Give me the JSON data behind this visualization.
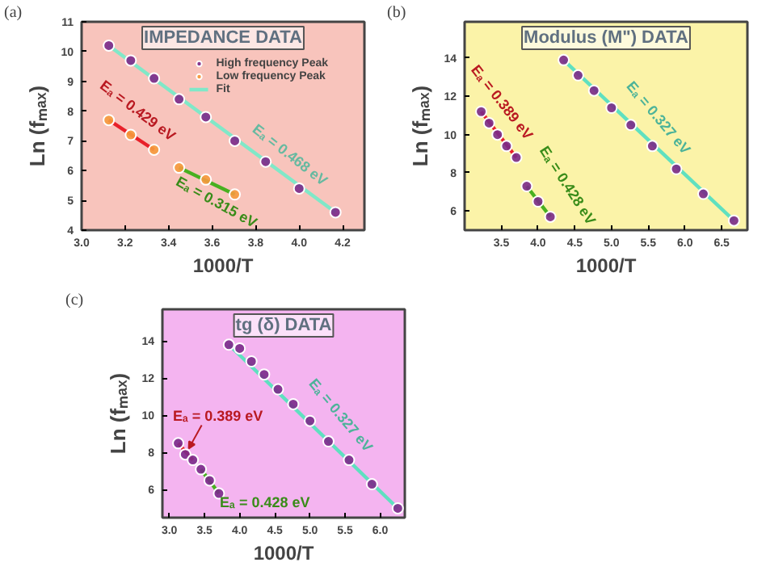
{
  "chart_data": [
    {
      "type": "scatter",
      "title": "IMPEDANCE DATA",
      "xlabel": "1000/T",
      "ylabel": "Ln (fₘₐₓ)",
      "xlim": [
        3.0,
        4.3
      ],
      "ylim": [
        4,
        11
      ],
      "xticks": [
        {
          "value": 3.0,
          "label": "3.0"
        },
        3.2,
        3.4,
        3.6,
        3.8,
        {
          "value": 4.0,
          "label": "4.0"
        },
        4.2
      ],
      "yticks": [
        4,
        5,
        6,
        7,
        8,
        9,
        10,
        11
      ],
      "grid": false,
      "legend": "top right",
      "series": [
        {
          "name": "High frequency Peak",
          "color": "#7a2a8a",
          "marker": "circle",
          "x": [
            3.125,
            3.226,
            3.333,
            3.448,
            3.571,
            3.704,
            3.846,
            4.0,
            4.167
          ],
          "values": [
            10.2,
            9.7,
            9.1,
            8.4,
            7.8,
            7.0,
            6.3,
            5.4,
            4.6
          ]
        },
        {
          "name": "Low frequency Peak",
          "color": "#f59a3c",
          "marker": "circle",
          "x": [
            3.125,
            3.226,
            3.333,
            3.448,
            3.571,
            3.704
          ],
          "values": [
            7.7,
            7.2,
            6.7,
            6.1,
            5.7,
            5.2
          ]
        },
        {
          "name": "Fit",
          "type": "line",
          "marker": "none",
          "color": "#80e8c8",
          "x": [
            3.125,
            4.167
          ],
          "values": [
            10.2,
            4.6
          ]
        },
        {
          "type": "line",
          "marker": "none",
          "color": "#e8202a",
          "x": [
            3.125,
            3.333
          ],
          "values": [
            7.7,
            6.7
          ]
        },
        {
          "type": "line",
          "marker": "none",
          "color": "#48b020",
          "x": [
            3.448,
            3.704
          ],
          "values": [
            6.1,
            5.2
          ]
        }
      ],
      "annotations": [
        "(a)",
        "Eₐ = 0.429 eV",
        "Eₐ = 0.468 eV",
        "Eₐ = 0.315 eV"
      ]
    },
    {
      "type": "scatter",
      "title": "Modulus (M\") DATA",
      "xlabel": "1000/T",
      "ylabel": "Ln (fₘₐₓ)",
      "xlim": [
        3.0,
        6.85
      ],
      "ylim": [
        5,
        15.9
      ],
      "xticks": [
        3.5,
        {
          "value": 4.0,
          "label": "4.0"
        },
        4.5,
        {
          "value": 5.0,
          "label": "5.0"
        },
        5.5,
        {
          "value": 6.0,
          "label": "6.0"
        },
        6.5
      ],
      "yticks": [
        6,
        8,
        10,
        12,
        14
      ],
      "grid": false,
      "series": [
        {
          "color": "#7a2a8a",
          "marker": "circle",
          "x": [
            3.226,
            3.333,
            3.448,
            3.571,
            3.704,
            3.846,
            4.0,
            4.167,
            4.348,
            4.545,
            4.762,
            5.0,
            5.263,
            5.556,
            5.882,
            6.25,
            6.667
          ],
          "values": [
            11.2,
            10.6,
            10.0,
            9.4,
            8.8,
            7.3,
            6.5,
            5.7,
            13.9,
            13.1,
            12.3,
            11.4,
            10.5,
            9.4,
            8.2,
            6.9,
            5.5
          ]
        },
        {
          "type": "line",
          "marker": "none",
          "color": "#e8202a",
          "x": [
            3.226,
            3.704
          ],
          "values": [
            11.2,
            8.8
          ]
        },
        {
          "type": "line",
          "marker": "none",
          "color": "#48b020",
          "x": [
            3.846,
            4.167
          ],
          "values": [
            7.3,
            5.7
          ]
        },
        {
          "type": "line",
          "marker": "none",
          "color": "#5fe0c0",
          "x": [
            4.348,
            6.667
          ],
          "values": [
            13.9,
            5.5
          ]
        }
      ],
      "annotations": [
        "(b)",
        "Eₐ = 0.389 eV",
        "Eₐ = 0.428 eV",
        "Eₐ = 0.327 eV"
      ]
    },
    {
      "type": "scatter",
      "title": "tg (δ) DATA",
      "xlabel": "1000/T",
      "ylabel": "Ln (fₘₐₓ)",
      "xlim": [
        2.9,
        6.35
      ],
      "ylim": [
        4.5,
        15.7
      ],
      "xticks": [
        {
          "value": 3.0,
          "label": "3.0"
        },
        3.5,
        {
          "value": 4.0,
          "label": "4.0"
        },
        4.5,
        {
          "value": 5.0,
          "label": "5.0"
        },
        5.5,
        {
          "value": 6.0,
          "label": "6.0"
        }
      ],
      "yticks": [
        6,
        8,
        10,
        12,
        14
      ],
      "grid": false,
      "series": [
        {
          "color": "#7a2a8a",
          "marker": "circle",
          "x": [
            3.125,
            3.226,
            3.333,
            3.448,
            3.571,
            3.704,
            3.846,
            4.0,
            4.167,
            4.348,
            4.545,
            4.762,
            5.0,
            5.263,
            5.556,
            5.882,
            6.25
          ],
          "values": [
            8.5,
            7.9,
            7.6,
            7.1,
            6.5,
            5.8,
            13.8,
            13.6,
            12.9,
            12.2,
            11.4,
            10.6,
            9.7,
            8.6,
            7.6,
            6.3,
            5.0
          ]
        },
        {
          "type": "line",
          "marker": "none",
          "color": "#e8202a",
          "x": [
            3.125,
            3.333
          ],
          "values": [
            8.5,
            7.6
          ]
        },
        {
          "type": "line",
          "marker": "none",
          "color": "#48b020",
          "x": [
            3.448,
            3.704
          ],
          "values": [
            7.1,
            5.8
          ]
        },
        {
          "type": "line",
          "marker": "none",
          "color": "#5fe0c0",
          "x": [
            3.846,
            6.25
          ],
          "values": [
            13.8,
            5.0
          ]
        }
      ],
      "annotations": [
        "(c)",
        "Eₐ = 0.389 eV",
        "Eₐ = 0.428 eV",
        "Eₐ = 0.327 eV"
      ]
    }
  ]
}
